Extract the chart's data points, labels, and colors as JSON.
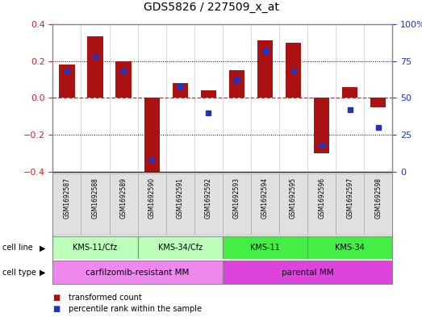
{
  "title": "GDS5826 / 227509_x_at",
  "samples": [
    "GSM1692587",
    "GSM1692588",
    "GSM1692589",
    "GSM1692590",
    "GSM1692591",
    "GSM1692592",
    "GSM1692593",
    "GSM1692594",
    "GSM1692595",
    "GSM1692596",
    "GSM1692597",
    "GSM1692598"
  ],
  "bar_values": [
    0.18,
    0.335,
    0.2,
    -0.42,
    0.08,
    0.04,
    0.15,
    0.31,
    0.3,
    -0.3,
    0.06,
    -0.05
  ],
  "pct_values": [
    68,
    78,
    68,
    8,
    58,
    40,
    62,
    82,
    68,
    18,
    42,
    30
  ],
  "ylim": [
    -0.4,
    0.4
  ],
  "yticks_left": [
    -0.4,
    -0.2,
    0.0,
    0.2,
    0.4
  ],
  "yticks_right": [
    0,
    25,
    50,
    75,
    100
  ],
  "bar_color": "#aa1111",
  "dot_color": "#2233bb",
  "zero_line_color": "#dd2222",
  "cell_line_groups": [
    {
      "label": "KMS-11/Cfz",
      "start": 0,
      "end": 3,
      "color": "#bbffbb"
    },
    {
      "label": "KMS-34/Cfz",
      "start": 3,
      "end": 6,
      "color": "#bbffbb"
    },
    {
      "label": "KMS-11",
      "start": 6,
      "end": 9,
      "color": "#44ee44"
    },
    {
      "label": "KMS-34",
      "start": 9,
      "end": 12,
      "color": "#44ee44"
    }
  ],
  "cell_type_groups": [
    {
      "label": "carfilzomib-resistant MM",
      "start": 0,
      "end": 6,
      "color": "#ee88ee"
    },
    {
      "label": "parental MM",
      "start": 6,
      "end": 12,
      "color": "#dd44dd"
    }
  ],
  "legend_items": [
    {
      "label": "transformed count",
      "color": "#aa1111"
    },
    {
      "label": "percentile rank within the sample",
      "color": "#2233bb"
    }
  ]
}
